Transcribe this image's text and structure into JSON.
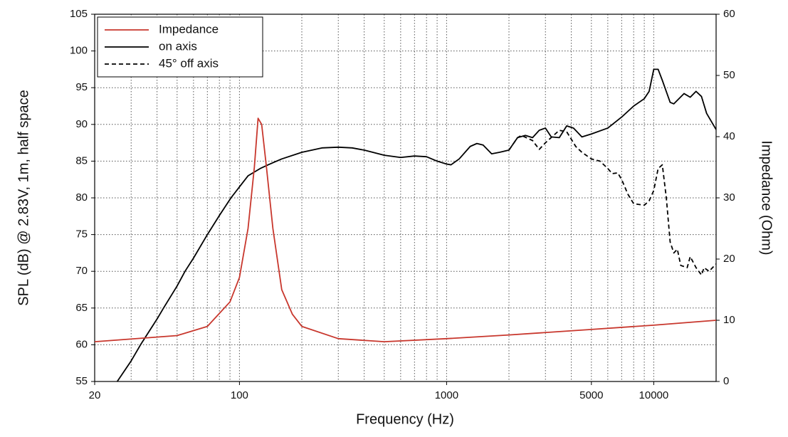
{
  "chart_data": {
    "type": "line",
    "xlabel": "Frequency (Hz)",
    "ylabel": "SPL (dB) @ 2.83V, 1m, half space",
    "y2label": "Impedance (Ohm)",
    "xscale": "log",
    "xlim": [
      20,
      20000
    ],
    "xticks": [
      20,
      100,
      1000,
      5000,
      10000
    ],
    "xminorticks": [
      30,
      40,
      50,
      60,
      70,
      80,
      90,
      200,
      300,
      400,
      500,
      600,
      700,
      800,
      900,
      2000,
      3000,
      4000,
      6000,
      7000,
      8000,
      9000,
      20000
    ],
    "ylim": [
      55,
      105
    ],
    "yticks": [
      55,
      60,
      65,
      70,
      75,
      80,
      85,
      90,
      95,
      100,
      105
    ],
    "y2lim": [
      0,
      60
    ],
    "y2ticks": [
      0,
      10,
      20,
      30,
      40,
      50,
      60
    ],
    "grid": true,
    "legend": "upper left",
    "series": [
      {
        "name": "Impedance",
        "color": "#c8372d",
        "axis": "y2",
        "linestyle": "solid",
        "x": [
          20,
          50,
          70,
          90,
          100,
          110,
          118,
          123,
          128,
          135,
          145,
          160,
          180,
          200,
          300,
          500,
          1000,
          2000,
          5000,
          10000,
          20000
        ],
        "values": [
          6.5,
          7.5,
          9,
          13,
          17,
          25,
          35,
          43,
          42,
          35,
          25,
          15,
          11,
          9,
          7,
          6.5,
          7,
          7.6,
          8.5,
          9.2,
          10
        ]
      },
      {
        "name": "on axis",
        "color": "#000000",
        "axis": "y",
        "linestyle": "solid",
        "x": [
          25.7,
          30,
          33.3,
          40,
          43,
          50,
          54.6,
          60,
          70,
          80,
          91,
          100,
          110,
          126,
          140,
          160,
          200,
          250,
          300,
          350,
          400,
          500,
          600,
          700,
          800,
          900,
          1000,
          1050,
          1150,
          1300,
          1400,
          1500,
          1650,
          1800,
          2000,
          2200,
          2400,
          2600,
          2800,
          3000,
          3200,
          3500,
          3800,
          4100,
          4500,
          5000,
          6000,
          7000,
          8000,
          9000,
          9500,
          10000,
          10500,
          11000,
          12000,
          12500,
          14000,
          15000,
          16000,
          17000,
          18000,
          20000
        ],
        "values": [
          55,
          57.8,
          60,
          63.5,
          65,
          68,
          70,
          71.8,
          75,
          77.6,
          80,
          81.5,
          83,
          84,
          84.6,
          85.3,
          86.2,
          86.8,
          86.9,
          86.8,
          86.5,
          85.8,
          85.5,
          85.7,
          85.6,
          85,
          84.6,
          84.5,
          85.3,
          87,
          87.4,
          87.2,
          86,
          86.2,
          86.5,
          88.2,
          88.5,
          88.2,
          89.2,
          89.5,
          88.3,
          88.2,
          89.8,
          89.5,
          88.3,
          88.7,
          89.5,
          91,
          92.5,
          93.5,
          94.5,
          97.5,
          97.5,
          96,
          93,
          92.8,
          94.2,
          93.7,
          94.5,
          93.8,
          91.5,
          89.3
        ]
      },
      {
        "name": "45° off axis",
        "color": "#000000",
        "axis": "y",
        "linestyle": "dashed",
        "x": [
          2000,
          2200,
          2300,
          2600,
          2800,
          3000,
          3500,
          3800,
          4200,
          4500,
          5000,
          5500,
          6000,
          6300,
          6700,
          7000,
          7500,
          8000,
          9000,
          9500,
          10000,
          10500,
          11000,
          11500,
          12000,
          12500,
          13000,
          13500,
          14500,
          15000,
          16000,
          17000,
          17500,
          18500,
          20000
        ],
        "values": [
          86.5,
          88.2,
          88.5,
          87.8,
          86.6,
          87.5,
          89.2,
          89,
          87,
          86.2,
          85.3,
          85,
          84,
          83.3,
          83.4,
          82.5,
          80.5,
          79.2,
          79,
          79.6,
          81,
          84,
          84.5,
          80,
          74,
          72.5,
          73,
          70.8,
          70.5,
          72,
          70.5,
          69.5,
          70.5,
          70,
          71
        ]
      }
    ]
  }
}
